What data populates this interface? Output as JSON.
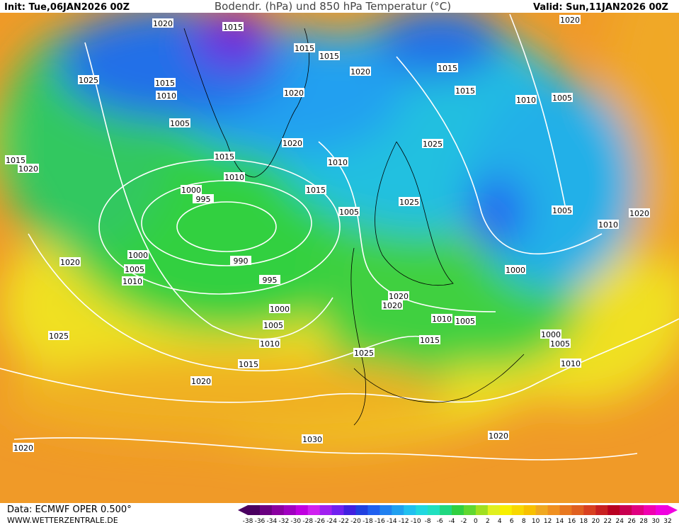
{
  "header": {
    "init": "Init: Tue,06JAN2026 00Z",
    "title": "Bodendr. (hPa) und 850 hPa Temperatur (°C)",
    "valid": "Valid: Sun,11JAN2026 00Z"
  },
  "footer": {
    "source": "Data: ECMWF OPER 0.500°",
    "site": "WWW.WETTERZENTRALE.DE"
  },
  "isobar_labels": [
    1020,
    1015,
    1015,
    1015,
    1020,
    1015,
    1015,
    1020,
    1025,
    1015,
    1010,
    1020,
    1010,
    1005,
    1005,
    1020,
    1025,
    1015,
    1010,
    1015,
    1020,
    1010,
    1015,
    1000,
    995,
    1025,
    1005,
    1005,
    1020,
    1010,
    1000,
    990,
    1020,
    1005,
    1000,
    995,
    1010,
    1020,
    1020,
    1000,
    1010,
    1005,
    1005,
    1000,
    1025,
    1015,
    1010,
    1005,
    1025,
    1015,
    1010,
    1020,
    1030,
    1020,
    1020
  ],
  "colorbar": {
    "labels": [
      -38,
      -36,
      -34,
      -32,
      -30,
      -28,
      -26,
      -24,
      -22,
      -20,
      -18,
      -16,
      -14,
      -12,
      -10,
      -8,
      -6,
      -4,
      -2,
      0,
      2,
      4,
      6,
      8,
      10,
      12,
      14,
      16,
      18,
      20,
      22,
      24,
      26,
      28,
      30,
      32
    ],
    "colors": [
      "#4a0060",
      "#6a0080",
      "#8a00a0",
      "#a000c0",
      "#c000e0",
      "#d020f0",
      "#a020f0",
      "#7020f0",
      "#4020e0",
      "#2040e0",
      "#2060f0",
      "#2080f0",
      "#20a0f0",
      "#20c0f0",
      "#20d8e0",
      "#20e0c0",
      "#20d880",
      "#30d040",
      "#60d830",
      "#a0e020",
      "#e0f020",
      "#f8f000",
      "#f8d800",
      "#f8c000",
      "#f0a820",
      "#f09020",
      "#e87820",
      "#e06020",
      "#d84020",
      "#c82020",
      "#b80020",
      "#c80050",
      "#e00080",
      "#f000b0",
      "#f000e0"
    ]
  }
}
